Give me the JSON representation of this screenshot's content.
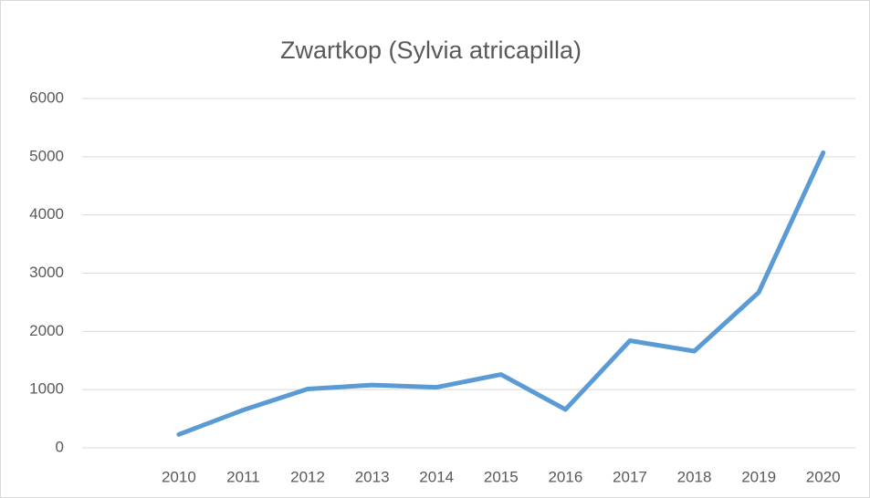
{
  "chart_data": {
    "type": "line",
    "title": "Zwartkop (Sylvia atricapilla)",
    "categories": [
      null,
      "2010",
      "2011",
      "2012",
      "2013",
      "2014",
      "2015",
      "2016",
      "2017",
      "2018",
      "2019",
      "2020"
    ],
    "values": [
      null,
      230,
      650,
      1010,
      1080,
      1040,
      1260,
      660,
      1840,
      1660,
      2670,
      5070
    ],
    "color": "#5b9bd5",
    "ylim": [
      0,
      6000
    ],
    "yticks": [
      0,
      1000,
      2000,
      3000,
      4000,
      5000,
      6000
    ],
    "grid": true
  }
}
